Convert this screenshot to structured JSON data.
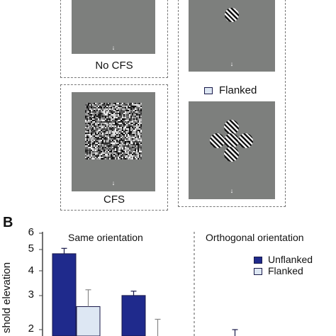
{
  "panel_a": {
    "no_cfs_label": "No CFS",
    "cfs_label": "CFS",
    "flanked_label": "Flanked",
    "arrow_glyph": "↓"
  },
  "panel_b": {
    "label": "B",
    "left_title": "Same orientation",
    "right_title": "Orthogonal orientation",
    "ylabel": "shold elevation",
    "colors": {
      "unflanked": "#1f2a8c",
      "flanked": "#dde7f3",
      "error_bar": "#888888"
    },
    "chart_data": {
      "type": "bar",
      "title": "",
      "xlabel": "",
      "ylabel": "shold elevation",
      "yscale": "log",
      "yticks": [
        2,
        3,
        4,
        5,
        6
      ],
      "ylim": [
        1.8,
        6.5
      ],
      "legend": {
        "placement": "top-right",
        "entries": [
          "Unflanked",
          "Flanked"
        ]
      },
      "groups": [
        {
          "panel": "Same orientation",
          "bars": [
            {
              "series": "Unflanked",
              "value": 4.75,
              "error": 0.3
            },
            {
              "series": "Flanked",
              "value": 2.6,
              "error": 0.55
            }
          ]
        },
        {
          "panel": "Same orientation",
          "bars": [
            {
              "series": "Unflanked",
              "value": 2.95,
              "error": 0.15
            },
            {
              "series": "Flanked",
              "value": 1.8,
              "error": 0.45
            }
          ]
        },
        {
          "panel": "Orthogonal orientation",
          "bars": [
            {
              "series": "Unflanked",
              "value": 1.8,
              "error": 0.2
            }
          ]
        }
      ]
    }
  }
}
